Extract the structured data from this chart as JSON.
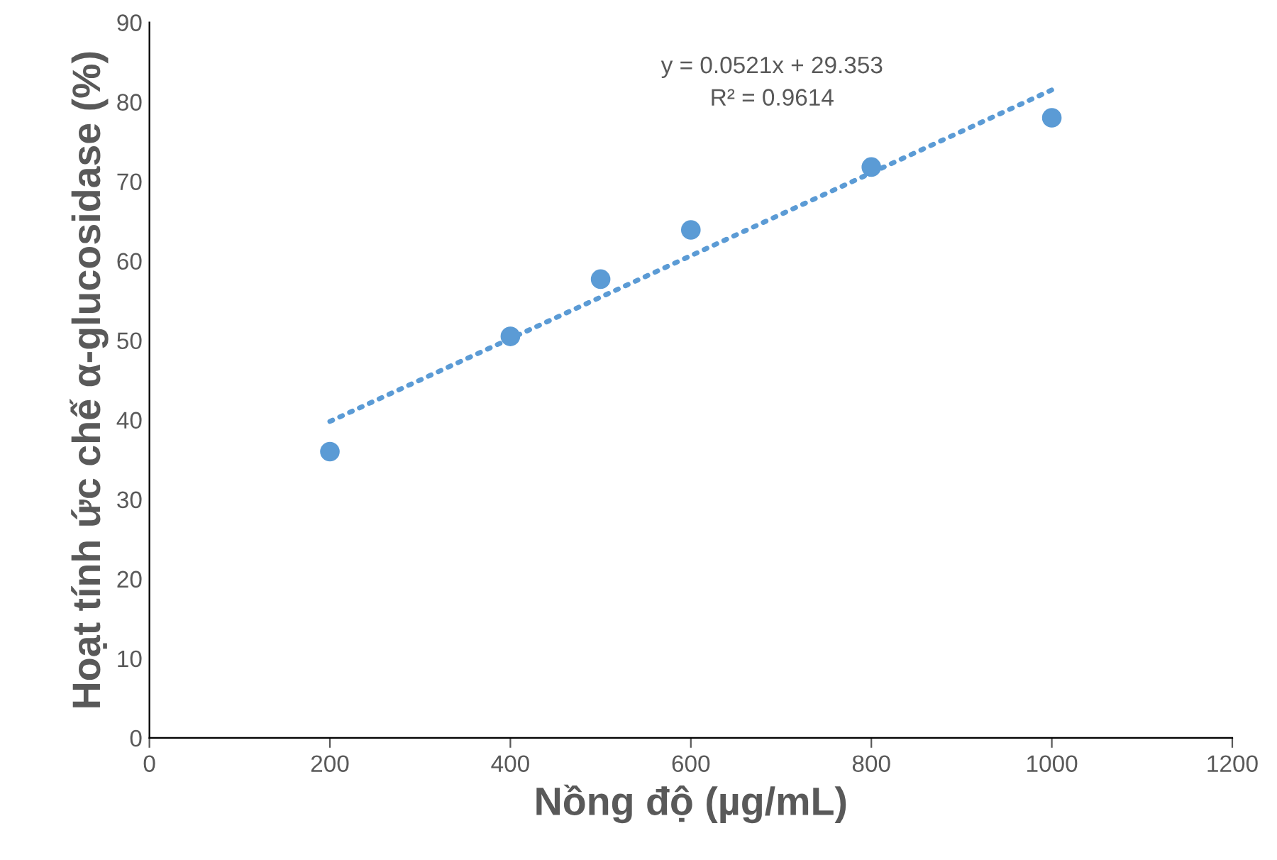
{
  "chart_data": {
    "type": "scatter",
    "xlabel": "Nồng độ (µg/mL)",
    "ylabel": "Hoạt tính ức chế α-glucosidase (%)",
    "xlim": [
      0,
      1200
    ],
    "xticks": [
      0,
      200,
      400,
      600,
      800,
      1000,
      1200
    ],
    "ylim": [
      0,
      90
    ],
    "yticks": [
      0,
      10,
      20,
      30,
      40,
      50,
      60,
      70,
      80,
      90
    ],
    "grid": false,
    "legend": false,
    "marker": "circle",
    "series": [
      {
        "color": "#5b9bd5",
        "x": [
          200,
          400,
          500,
          600,
          800,
          1000
        ],
        "values": [
          36.0,
          50.5,
          57.7,
          63.9,
          71.8,
          78.0
        ]
      },
      {
        "type": "line",
        "line_style": "dotted",
        "marker": "none",
        "color": "#5b9bd5",
        "x": [
          200,
          1000
        ],
        "values": [
          39.8,
          81.5
        ]
      }
    ],
    "annotations": [
      "y = 0.0521x + 29.353\nR² = 0.9614"
    ]
  }
}
